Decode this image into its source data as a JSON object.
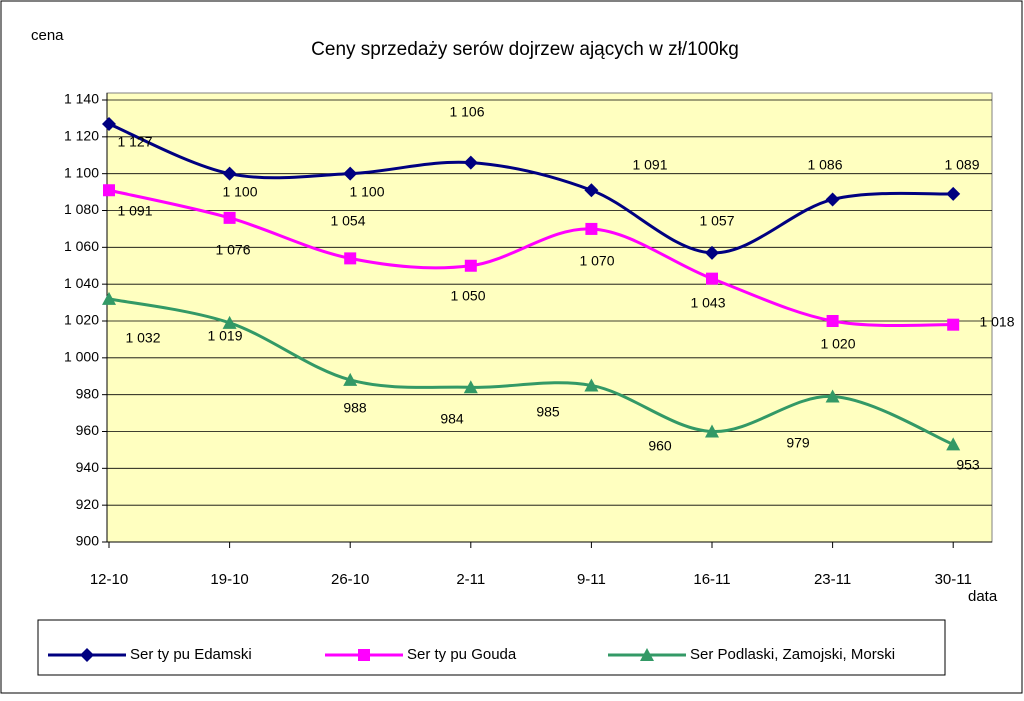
{
  "chart_data": {
    "type": "line",
    "title": "Ceny sprzedaży serów dojrzew ających w zł/100kg",
    "y_label": "cena",
    "x_label": "data",
    "categories": [
      "12-10",
      "19-10",
      "26-10",
      "2-11",
      "9-11",
      "16-11",
      "23-11",
      "30-11"
    ],
    "series": [
      {
        "name": "Ser ty pu Edamski",
        "color": "#000080",
        "values": [
          1127,
          1100,
          1100,
          1106,
          1091,
          1057,
          1086,
          1089
        ],
        "value_labels": [
          "1 127",
          "1 100",
          "1 100",
          "1 106",
          "1 091",
          "1 057",
          "1 086",
          "1 089"
        ]
      },
      {
        "name": "Ser ty pu Gouda",
        "color": "#ff00ff",
        "values": [
          1091,
          1076,
          1054,
          1050,
          1070,
          1043,
          1020,
          1018
        ],
        "value_labels": [
          "1 091",
          "1 076",
          "1 054",
          "1 050",
          "1 070",
          "1 043",
          "1 020",
          "1 018"
        ]
      },
      {
        "name": "Ser Podlaski, Zamojski, Morski",
        "color": "#339966",
        "values": [
          1032,
          1019,
          988,
          984,
          985,
          960,
          979,
          953
        ],
        "value_labels": [
          "1 032",
          "1 019",
          "988",
          "984",
          "985",
          "960",
          "979",
          "953"
        ]
      }
    ],
    "ylim": [
      900,
      1140
    ],
    "yticks": [
      900,
      920,
      940,
      960,
      980,
      {
        "value": 1000,
        "label": "1 000"
      },
      {
        "value": 1020,
        "label": "1 020"
      },
      {
        "value": 1040,
        "label": "1 040"
      },
      {
        "value": 1060,
        "label": "1 060"
      },
      {
        "value": 1080,
        "label": "1 080"
      },
      {
        "value": 1100,
        "label": "1 100"
      },
      {
        "value": 1120,
        "label": "1 120"
      },
      {
        "value": 1140,
        "label": "1 140"
      }
    ],
    "grid": true,
    "legend": "bottom"
  }
}
